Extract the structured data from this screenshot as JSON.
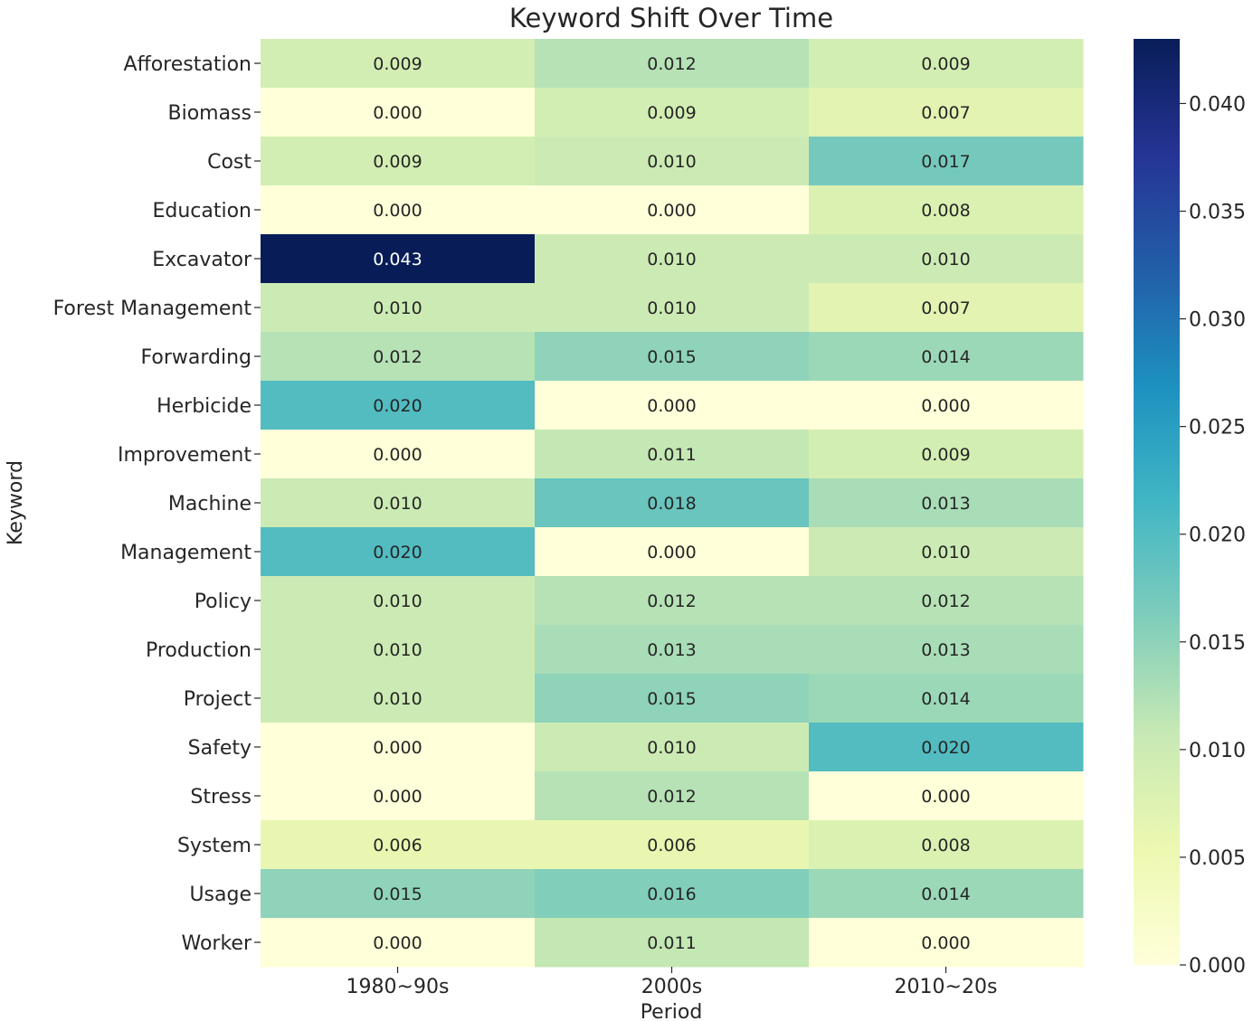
{
  "chart_data": {
    "type": "heatmap",
    "title": "Keyword Shift Over Time",
    "xlabel": "Period",
    "ylabel": "Keyword",
    "columns": [
      "1980~90s",
      "2000s",
      "2010~20s"
    ],
    "rows": [
      "Afforestation",
      "Biomass",
      "Cost",
      "Education",
      "Excavator",
      "Forest Management",
      "Forwarding",
      "Herbicide",
      "Improvement",
      "Machine",
      "Management",
      "Policy",
      "Production",
      "Project",
      "Safety",
      "Stress",
      "System",
      "Usage",
      "Worker"
    ],
    "values": [
      [
        0.009,
        0.012,
        0.009
      ],
      [
        0.0,
        0.009,
        0.007
      ],
      [
        0.009,
        0.01,
        0.017
      ],
      [
        0.0,
        0.0,
        0.008
      ],
      [
        0.043,
        0.01,
        0.01
      ],
      [
        0.01,
        0.01,
        0.007
      ],
      [
        0.012,
        0.015,
        0.014
      ],
      [
        0.02,
        0.0,
        0.0
      ],
      [
        0.0,
        0.011,
        0.009
      ],
      [
        0.01,
        0.018,
        0.013
      ],
      [
        0.02,
        0.0,
        0.01
      ],
      [
        0.01,
        0.012,
        0.012
      ],
      [
        0.01,
        0.013,
        0.013
      ],
      [
        0.01,
        0.015,
        0.014
      ],
      [
        0.0,
        0.01,
        0.02
      ],
      [
        0.0,
        0.012,
        0.0
      ],
      [
        0.006,
        0.006,
        0.008
      ],
      [
        0.015,
        0.016,
        0.014
      ],
      [
        0.0,
        0.011,
        0.0
      ]
    ],
    "value_range": [
      0.0,
      0.043
    ],
    "colormap": "YlGnBu",
    "colorbar_ticks": [
      "0.000",
      "0.005",
      "0.010",
      "0.015",
      "0.020",
      "0.025",
      "0.030",
      "0.035",
      "0.040"
    ],
    "legend": "colorbar-right",
    "grid": false
  }
}
